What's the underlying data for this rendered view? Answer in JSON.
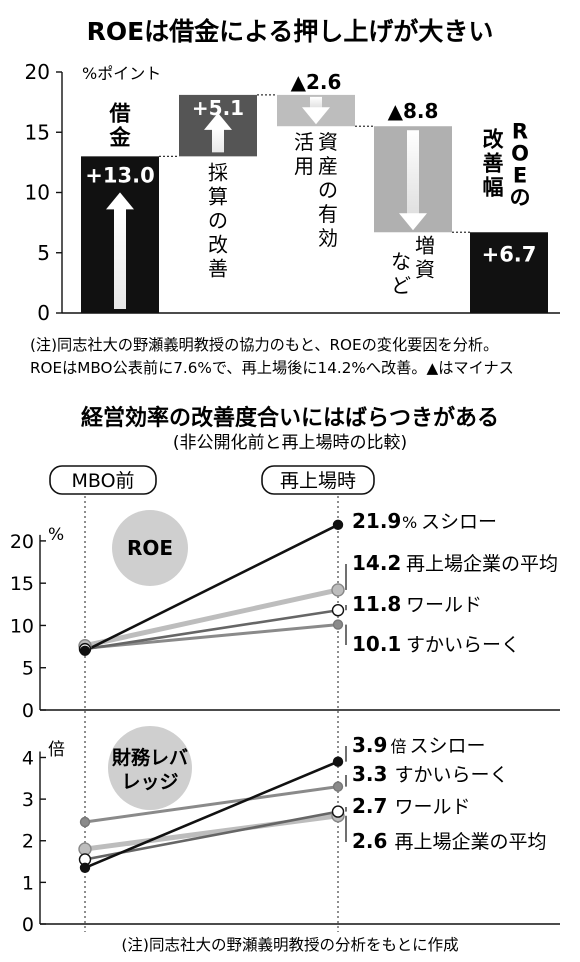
{
  "chart_data": [
    {
      "type": "waterfall",
      "title": "ROEは借金による押し上げが大きい",
      "yunit": "%ポイント",
      "ylim": [
        0,
        20
      ],
      "yticks": [
        "0",
        "5",
        "10",
        "15",
        "20"
      ],
      "steps": [
        {
          "label": "借金",
          "value": 13.0,
          "value_label": "+13.0",
          "direction": "up"
        },
        {
          "label": "採算の改善",
          "value": 5.1,
          "value_label": "+5.1",
          "direction": "up"
        },
        {
          "label": "資産の有効活用",
          "value": -2.6,
          "value_label": "▲2.6",
          "direction": "down"
        },
        {
          "label": "増資など",
          "value": -8.8,
          "value_label": "▲8.8",
          "direction": "down"
        },
        {
          "label": "ROEの改善幅",
          "value": 6.7,
          "value_label": "+6.7",
          "direction": "total"
        }
      ],
      "note1": "(注)同志社大の野瀬義明教授の協力のもと、ROEの変化要因を分析。",
      "note2": "ROEはMBO公表前に7.6%で、再上場後に14.2%へ改善。▲はマイナス"
    },
    {
      "type": "slope",
      "title": "経営効率の改善度合いにはばらつきがある",
      "subtitle": "(非公開化前と再上場時の比較)",
      "x": [
        "MBO前",
        "再上場時"
      ],
      "panels": [
        {
          "name": "ROE",
          "unit": "%",
          "ylim": [
            0,
            22
          ],
          "yticks": [
            "0",
            "5",
            "10",
            "15",
            "20"
          ],
          "series": [
            {
              "name": "スシロー",
              "values": [
                7.0,
                21.9
              ],
              "value_label": "21.9",
              "unit_label": "%",
              "style": "black"
            },
            {
              "name": "再上場企業の平均",
              "values": [
                7.6,
                14.2
              ],
              "value_label": "14.2",
              "unit_label": "",
              "style": "lightgray"
            },
            {
              "name": "ワールド",
              "values": [
                7.2,
                11.8
              ],
              "value_label": "11.8",
              "unit_label": "",
              "style": "white"
            },
            {
              "name": "すかいらーく",
              "values": [
                7.3,
                10.1
              ],
              "value_label": "10.1",
              "unit_label": "",
              "style": "darkgray"
            }
          ]
        },
        {
          "name": "財務レバレッジ",
          "unit": "倍",
          "ylim": [
            0,
            4.3
          ],
          "yticks": [
            "0",
            "1",
            "2",
            "3",
            "4"
          ],
          "series": [
            {
              "name": "スシロー",
              "values": [
                1.35,
                3.9
              ],
              "value_label": "3.9",
              "unit_label": "倍",
              "style": "black"
            },
            {
              "name": "すかいらーく",
              "values": [
                2.45,
                3.3
              ],
              "value_label": "3.3",
              "unit_label": "",
              "style": "darkgray"
            },
            {
              "name": "ワールド",
              "values": [
                1.55,
                2.7
              ],
              "value_label": "2.7",
              "unit_label": "",
              "style": "white"
            },
            {
              "name": "再上場企業の平均",
              "values": [
                1.8,
                2.6
              ],
              "value_label": "2.6",
              "unit_label": "",
              "style": "lightgray"
            }
          ]
        }
      ],
      "note": "(注)同志社大の野瀬義明教授の分析をもとに作成"
    }
  ]
}
